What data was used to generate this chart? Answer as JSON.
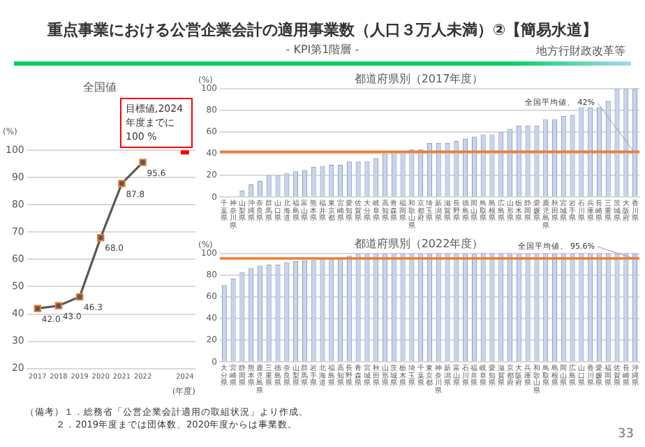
{
  "chart_data": [
    {
      "type": "line",
      "title": "全国値",
      "xlabel": "(年度)",
      "ylabel": "(%)",
      "x": [
        2017,
        2018,
        2019,
        2020,
        2021,
        2022
      ],
      "xlim": [
        2016.5,
        2024.5
      ],
      "xticks": [
        2017,
        2018,
        2019,
        2020,
        2021,
        2022,
        2024
      ],
      "ylim": [
        20,
        100
      ],
      "yticks": [
        20,
        30,
        40,
        50,
        60,
        70,
        80,
        90,
        100
      ],
      "grid": "y",
      "legend": false,
      "marker": "square",
      "line_style": "solid",
      "series": [
        {
          "type": "line",
          "color": "#595959",
          "values": [
            42.0,
            43.0,
            46.3,
            68.0,
            87.8,
            95.6
          ],
          "value_labels": [
            "42.0",
            "43.0",
            "46.3",
            "68.0",
            "87.8",
            "95.6"
          ]
        },
        {
          "type": "scatter",
          "color": "#ff0000",
          "x": [
            2024
          ],
          "values": [
            100
          ]
        }
      ],
      "annotations": [
        "重点事業における公営企業会計の適用事業数（人口３万人未満）②【簡易水道】",
        "- KPI第1階層 -",
        "地方行財政改革等",
        "目標値,2024年度までに100 %",
        "（備考）１．総務省「公営企業会計適用の取組状況」より作成。",
        "２．2019年度までは団体数、2020年度からは事業数。",
        "33"
      ]
    },
    {
      "type": "bar",
      "title": "都道府県別（2017年度）",
      "ylabel": "(%)",
      "ylim": [
        0,
        100
      ],
      "yticks": [
        0,
        20,
        40,
        60,
        80,
        100
      ],
      "grid": "y",
      "legend": false,
      "categories": [
        "千葉県",
        "神奈川県",
        "山梨県",
        "沖縄県",
        "奈良県",
        "群馬県",
        "山口県",
        "北海道",
        "福島県",
        "富山県",
        "熊本県",
        "福井県",
        "東京都",
        "宮崎県",
        "愛知県",
        "佐賀県",
        "大分県",
        "岐阜県",
        "高知県",
        "青森県",
        "福岡県",
        "和歌山県",
        "京都府",
        "埼玉県",
        "新潟県",
        "滋賀県",
        "長野県",
        "徳島県",
        "岡山県",
        "鳥取県",
        "島根県",
        "広島県",
        "山形県",
        "栃木県",
        "静岡県",
        "愛媛県",
        "鹿児島県",
        "秋田県",
        "宮城県",
        "岩手県",
        "石川県",
        "兵庫県",
        "長崎県",
        "三重県",
        "茨城県",
        "大阪府",
        "香川県"
      ],
      "series": [
        {
          "color": "#c9d3ea",
          "values": [
            0,
            0,
            6,
            12,
            15,
            20,
            20,
            22,
            24,
            25,
            28,
            29,
            30,
            30,
            33,
            33,
            33,
            36,
            40,
            42,
            42,
            44,
            44,
            50,
            50,
            50,
            52,
            54,
            56,
            58,
            58,
            60,
            63,
            66,
            66,
            66,
            72,
            72,
            75,
            76,
            83,
            83,
            83,
            89,
            100,
            100,
            100
          ]
        }
      ],
      "ref_lines": [
        {
          "axis": "y",
          "value": 42,
          "label": "全国平均値、 42%",
          "color": "#ed7d31"
        }
      ]
    },
    {
      "type": "bar",
      "title": "都道府県別（2022年度）",
      "ylabel": "(%)",
      "ylim": [
        0,
        100
      ],
      "yticks": [
        0,
        20,
        40,
        60,
        80,
        100
      ],
      "grid": "y",
      "legend": false,
      "categories": [
        "大分県",
        "宮崎県",
        "静岡県",
        "熊本県",
        "鹿児島県",
        "三重県",
        "徳島県",
        "奈良県",
        "山梨県",
        "群馬県",
        "岩手県",
        "北海道",
        "福島県",
        "高知県",
        "長野県",
        "青森県",
        "宮城県",
        "秋田県",
        "山形県",
        "茨城県",
        "栃木県",
        "埼玉県",
        "千葉県",
        "東京都",
        "神奈川県",
        "新潟県",
        "富山県",
        "石川県",
        "福井県",
        "岐阜県",
        "愛知県",
        "滋賀県",
        "京都府",
        "大阪府",
        "兵庫県",
        "和歌山県",
        "鳥取県",
        "島根県",
        "岡山県",
        "広島県",
        "山口県",
        "香川県",
        "愛媛県",
        "福岡県",
        "佐賀県",
        "長崎県",
        "沖縄県"
      ],
      "series": [
        {
          "color": "#c9d3ea",
          "values": [
            71,
            77,
            83,
            87,
            89,
            90,
            90,
            92,
            93,
            94,
            94,
            95,
            95,
            95,
            98,
            100,
            100,
            100,
            100,
            100,
            100,
            100,
            100,
            100,
            100,
            100,
            100,
            100,
            100,
            100,
            100,
            100,
            100,
            100,
            100,
            100,
            100,
            100,
            100,
            100,
            100,
            100,
            100,
            100,
            100,
            100,
            100
          ]
        }
      ],
      "ref_lines": [
        {
          "axis": "y",
          "value": 95.6,
          "label": "全国平均値、 95.6%",
          "color": "#ed7d31"
        }
      ]
    }
  ]
}
